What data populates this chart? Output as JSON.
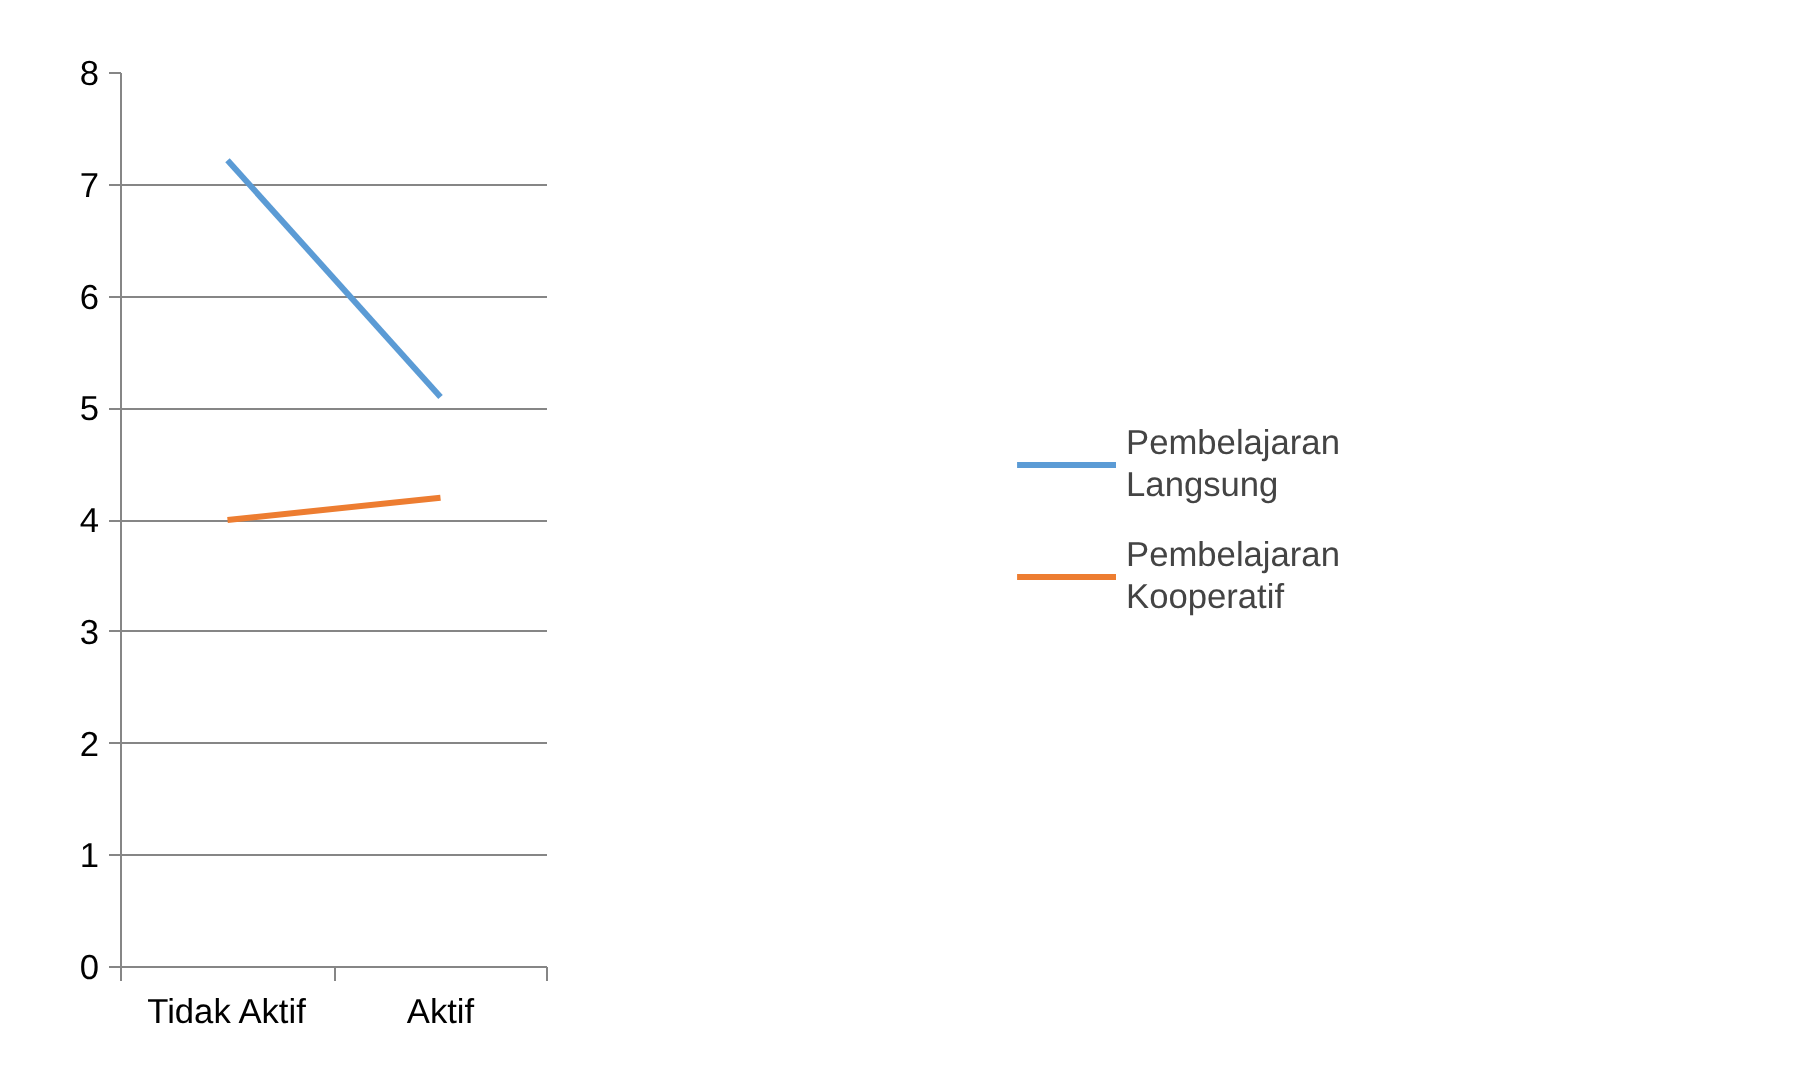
{
  "chart_data": {
    "type": "line",
    "categories": [
      "Tidak Aktif",
      "Aktif"
    ],
    "series": [
      {
        "name": "Pembelajaran Langsung",
        "color": "#5b9bd5",
        "values": [
          7.22,
          5.1
        ]
      },
      {
        "name": "Pembelajaran Kooperatif",
        "color": "#ed7d31",
        "values": [
          4.0,
          4.2
        ]
      }
    ],
    "ylim": [
      0,
      8
    ],
    "yticks": [
      0,
      1,
      2,
      3,
      4,
      5,
      6,
      7,
      8
    ],
    "grid": "y",
    "legend": "right",
    "marker": "none",
    "line_style": "solid"
  }
}
